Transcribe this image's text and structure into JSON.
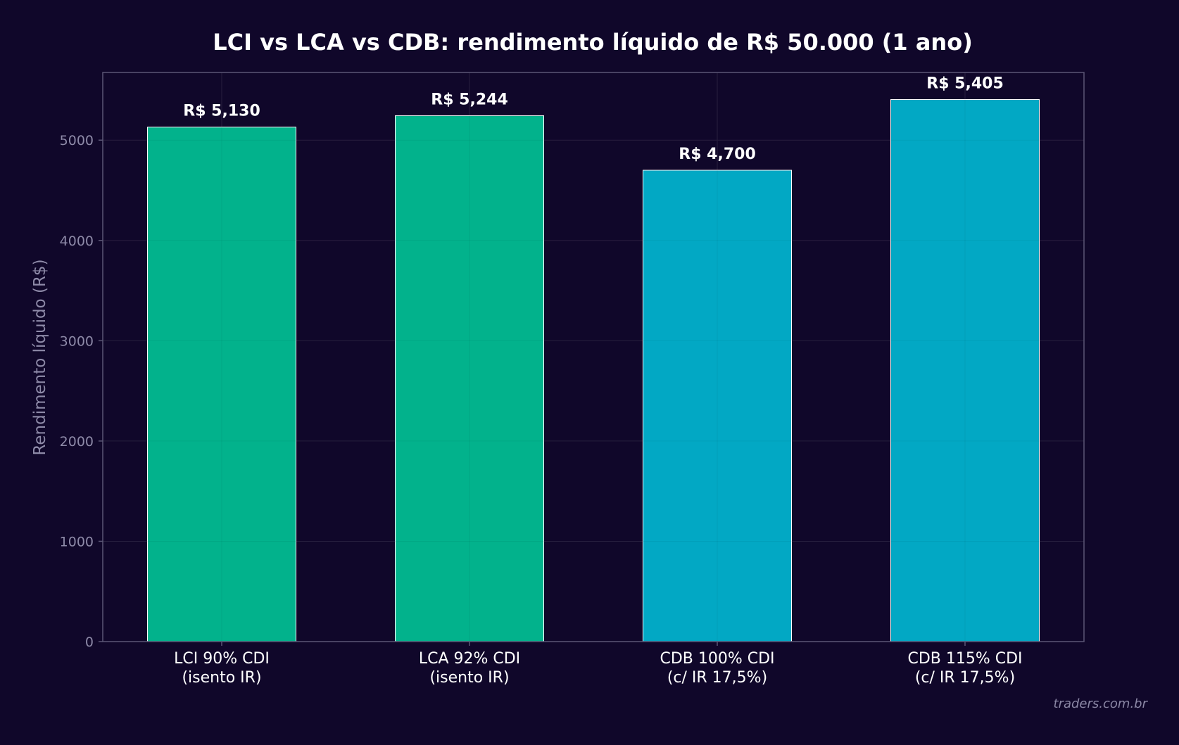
{
  "chart_data": {
    "type": "bar",
    "title": "LCI vs LCA vs CDB: rendimento líquido de R$ 50.000 (1 ano)",
    "xlabel": "",
    "ylabel": "Rendimento líquido (R$)",
    "ylim": [
      0,
      5675
    ],
    "yticks": [
      0,
      1000,
      2000,
      3000,
      4000,
      5000
    ],
    "grid": true,
    "categories": [
      [
        "LCI 90% CDI",
        "(isento IR)"
      ],
      [
        "LCA 92% CDI",
        "(isento IR)"
      ],
      [
        "CDB 100% CDI",
        "(c/ IR 17,5%)"
      ],
      [
        "CDB 115% CDI",
        "(c/ IR 17,5%)"
      ]
    ],
    "values": [
      5130,
      5244,
      4700,
      5405
    ],
    "data_labels": [
      "R$ 5,130",
      "R$ 5,244",
      "R$ 4,700",
      "R$ 5,405"
    ],
    "bar_colors": [
      "#02b28c",
      "#02b28c",
      "#02a8c4",
      "#02a8c4"
    ]
  },
  "watermark": "traders.com.br",
  "colors": {
    "background": "#10072a",
    "axes_frame": "#5a5675",
    "grid": "#2a2142",
    "tick_label": "#8e8aa8",
    "ylabel": "#8e8aa8",
    "category_label": "#ffffff",
    "title": "#ffffff",
    "bar_edge": "#ffffff",
    "watermark": "#8a86a4"
  }
}
